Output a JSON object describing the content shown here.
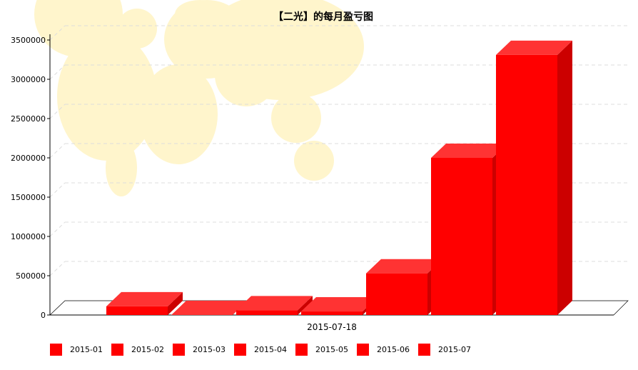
{
  "chart_data": {
    "type": "bar",
    "title": "【二光】的每月盈亏图",
    "categories": [
      "2015-07-18"
    ],
    "series": [
      {
        "name": "2015-01",
        "values": [
          110000
        ]
      },
      {
        "name": "2015-02",
        "values": [
          0
        ]
      },
      {
        "name": "2015-03",
        "values": [
          60000
        ]
      },
      {
        "name": "2015-04",
        "values": [
          45000
        ]
      },
      {
        "name": "2015-05",
        "values": [
          530000
        ]
      },
      {
        "name": "2015-06",
        "values": [
          2000000
        ]
      },
      {
        "name": "2015-07",
        "values": [
          3310000
        ]
      }
    ],
    "ylim": [
      0,
      3500000
    ],
    "yticks": [
      0,
      500000,
      1000000,
      1500000,
      2000000,
      2500000,
      3000000,
      3500000
    ],
    "grid": true,
    "legend_position": "bottom-left",
    "colors": {
      "front": "#ff0000",
      "top": "#ff3333",
      "side": "#cc0000",
      "grid": "#dddddd",
      "map": "#fff5cc"
    }
  }
}
